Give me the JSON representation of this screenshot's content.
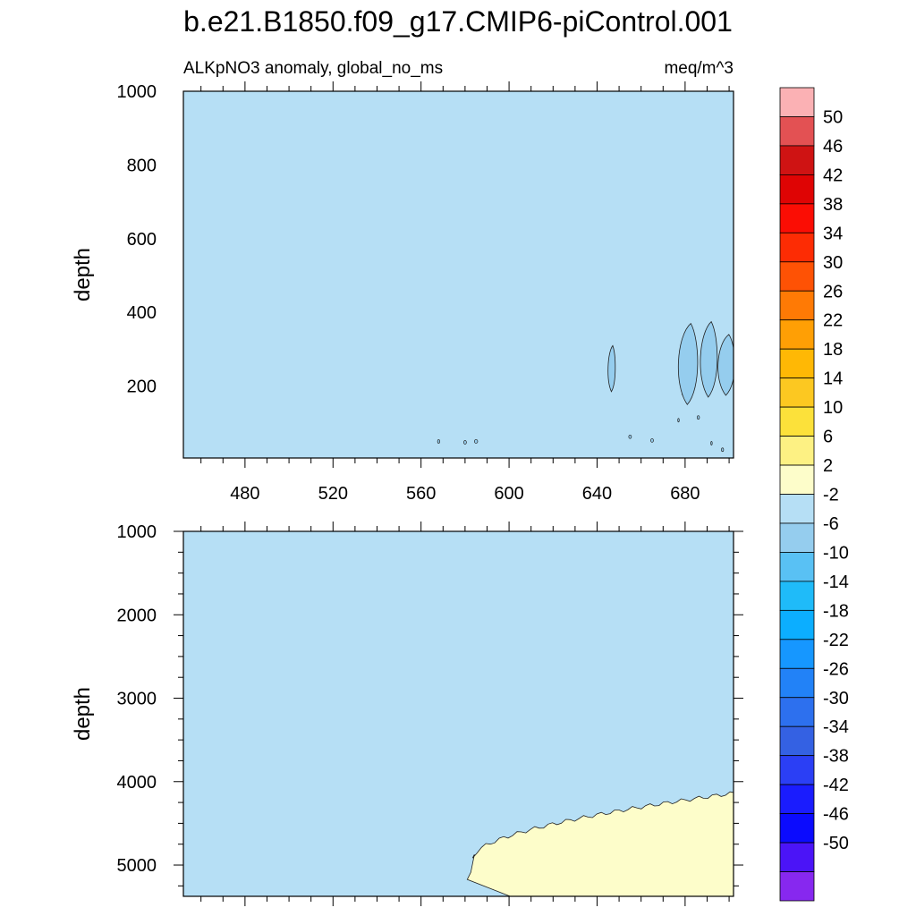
{
  "figure": {
    "title": "b.e21.B1850.f09_g17.CMIP6-piControl.001",
    "left_string": "ALKpNO3 anomaly, global_no_ms",
    "right_string": "meq/m^3"
  },
  "chart_data": [
    {
      "type": "contour",
      "panel": "upper",
      "ylabel": "depth",
      "xlabel": "",
      "xlim": [
        452,
        702
      ],
      "ylim": [
        1000,
        5
      ],
      "y_reversed": true,
      "x_ticks": [
        480,
        520,
        560,
        600,
        640,
        680
      ],
      "y_ticks": [
        200,
        400,
        600,
        800,
        1000
      ],
      "background_range": [
        -2,
        2
      ],
      "regions": [
        {
          "range": [
            -6,
            -2
          ],
          "x": [
            585,
            686,
            706
          ],
          "y": [
            12,
            200,
            375
          ]
        },
        {
          "range": [
            -6,
            -2
          ],
          "x": [
            645,
            648
          ],
          "y": [
            185,
            310
          ]
        },
        {
          "range": [
            -6,
            -2
          ],
          "x": [
            677,
            685
          ],
          "y": [
            150,
            370
          ]
        },
        {
          "range": [
            -6,
            -2
          ],
          "x": [
            687,
            694
          ],
          "y": [
            170,
            375
          ]
        },
        {
          "range": [
            -6,
            -2
          ],
          "x": [
            695,
            702
          ],
          "y": [
            175,
            340
          ]
        }
      ]
    },
    {
      "type": "contour",
      "panel": "lower",
      "ylabel": "depth",
      "xlabel": "",
      "xlim": [
        452,
        702
      ],
      "ylim": [
        1000,
        5375
      ],
      "y_reversed": true,
      "x_ticks": [
        480,
        520,
        560,
        600,
        640,
        680
      ],
      "y_ticks": [
        1000,
        2000,
        3000,
        4000,
        5000
      ],
      "background_range": [
        -2,
        2
      ],
      "regions": [
        {
          "range": [
            2,
            6
          ],
          "x_start": 581,
          "x_end": 702,
          "top_depth_at_x_start": 5130,
          "top_depth_at_x_end": 4130
        }
      ]
    }
  ],
  "colorbar": {
    "levels": [
      "50",
      "46",
      "42",
      "38",
      "34",
      "30",
      "26",
      "22",
      "18",
      "14",
      "10",
      "6",
      "2",
      "-2",
      "-6",
      "-10",
      "-14",
      "-18",
      "-22",
      "-26",
      "-30",
      "-34",
      "-38",
      "-42",
      "-46",
      "-50"
    ],
    "colors": [
      "#fbb1b4",
      "#e35153",
      "#cf1313",
      "#df0404",
      "#fb0d04",
      "#fd2c04",
      "#fe5205",
      "#ff7a05",
      "#ff9f05",
      "#ffb805",
      "#fcc821",
      "#fce13a",
      "#fdf183",
      "#fdfdca",
      "#b6dff5",
      "#95cdee",
      "#59c1f4",
      "#1fbbf9",
      "#0caeff",
      "#1697ff",
      "#2282f7",
      "#2d70ee",
      "#3461e3",
      "#2b3ff5",
      "#1a1cfe",
      "#0b0bfe",
      "#4b14f7",
      "#8728ef"
    ]
  }
}
